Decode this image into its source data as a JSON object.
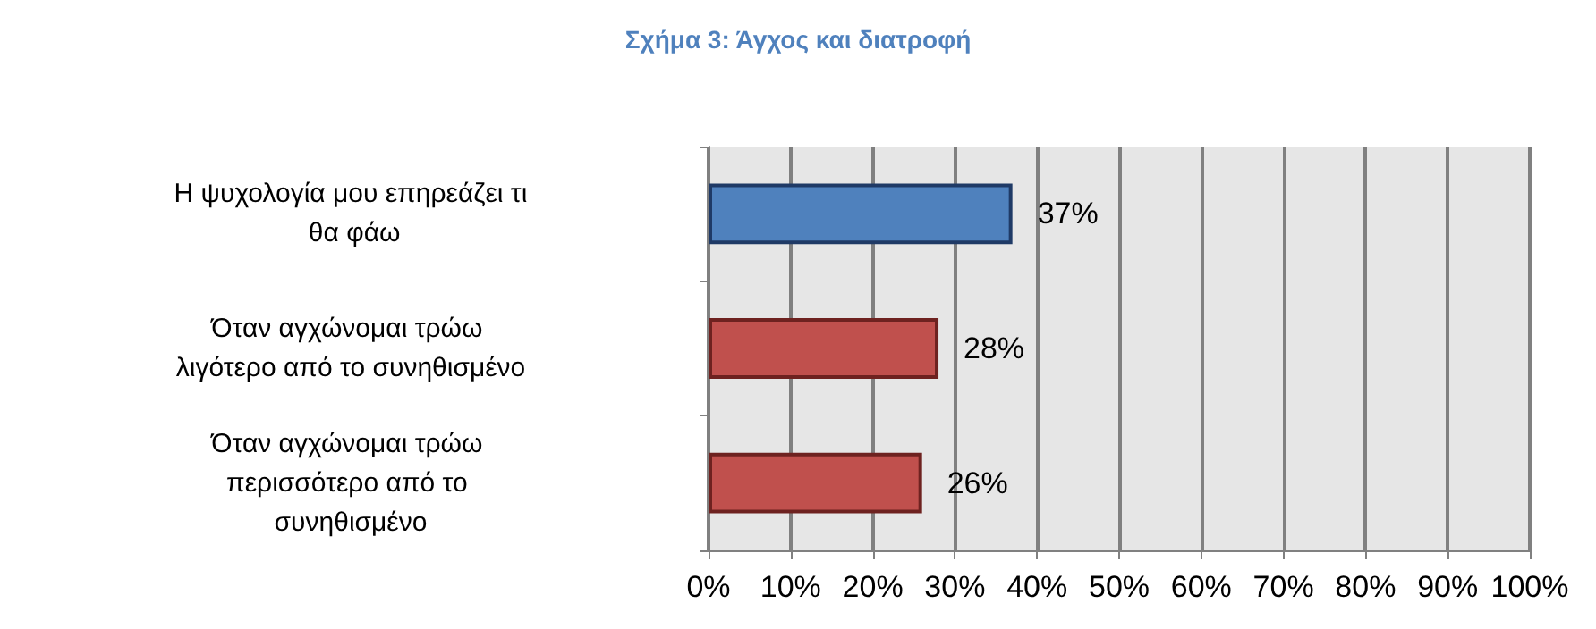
{
  "chart_data": {
    "type": "bar",
    "orientation": "horizontal",
    "title": "Σχήμα 3: Άγχος και διατροφή",
    "categories": [
      "Η ψυχολογία μου επηρεάζει τι θα φάω",
      "Όταν αγχώνομαι τρώω λιγότερο από το συνηθισμένο",
      "Όταν αγχώνομαι τρώω περισσότερο από το συνηθισμένο"
    ],
    "values": [
      37,
      28,
      26
    ],
    "colors": [
      "#4f81bd",
      "#c0504d",
      "#c0504d"
    ],
    "value_labels": [
      "37%",
      "28%",
      "26%"
    ],
    "xlim": [
      0,
      100
    ],
    "xticks": [
      {
        "value": 0,
        "label": "0%"
      },
      {
        "value": 10,
        "label": "10%"
      },
      {
        "value": 20,
        "label": "20%"
      },
      {
        "value": 30,
        "label": "30%"
      },
      {
        "value": 40,
        "label": "40%"
      },
      {
        "value": 50,
        "label": "50%"
      },
      {
        "value": 60,
        "label": "60%"
      },
      {
        "value": 70,
        "label": "70%"
      },
      {
        "value": 80,
        "label": "80%"
      },
      {
        "value": 90,
        "label": "90%"
      },
      {
        "value": 100,
        "label": "100%"
      }
    ],
    "grid": "x"
  }
}
